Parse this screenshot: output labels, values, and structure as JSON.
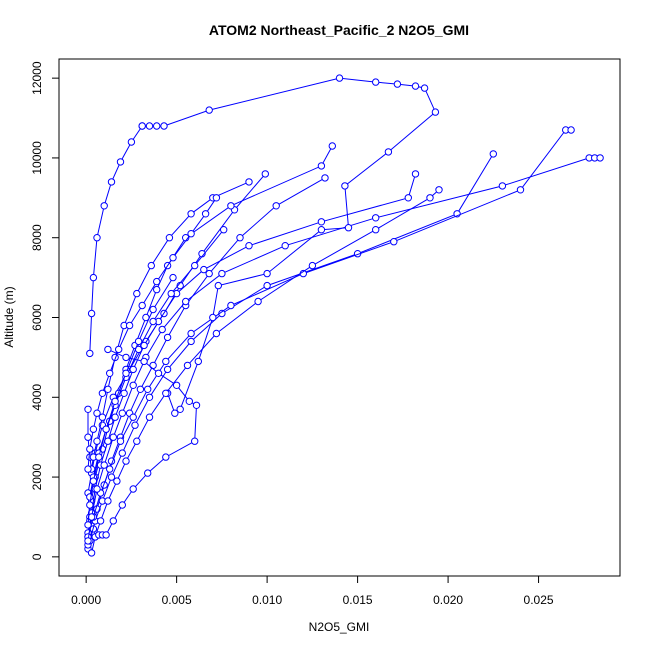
{
  "chart_data": {
    "type": "line",
    "title": "ATOM2 Northeast_Pacific_2 N2O5_GMI",
    "xlabel": "N2O5_GMI",
    "ylabel": "Altitude (m)",
    "xlim": [
      -0.0015,
      0.0295
    ],
    "ylim": [
      -480,
      12480
    ],
    "xticks": [
      0.0,
      0.005,
      0.01,
      0.015,
      0.02,
      0.025
    ],
    "xtick_labels": [
      "0.000",
      "0.005",
      "0.010",
      "0.015",
      "0.020",
      "0.025"
    ],
    "yticks": [
      0,
      2000,
      4000,
      6000,
      8000,
      10000,
      12000
    ],
    "ytick_labels": [
      "0",
      "2000",
      "4000",
      "6000",
      "8000",
      "10000",
      "12000"
    ],
    "grid": false,
    "legend": "none",
    "marker": "open-circle",
    "color": "#0000ff",
    "series": [
      {
        "x": [
          0.0001,
          0.0003,
          0.0002,
          0.0001,
          0.0003,
          0.0005,
          0.0009,
          0.0015,
          0.0024,
          0.0033,
          0.0043,
          0.0052,
          0.0064,
          0.0082,
          0.0099
        ],
        "y": [
          200,
          600,
          1000,
          1600,
          2100,
          2600,
          3300,
          4000,
          4700,
          5400,
          6100,
          6800,
          7600,
          8700,
          9600
        ]
      },
      {
        "x": [
          0.0001,
          0.0004,
          0.0006,
          0.001,
          0.0014,
          0.0019,
          0.0024,
          0.003,
          0.0037,
          0.0045,
          0.0055,
          0.0068,
          0.0085,
          0.0105,
          0.0132
        ],
        "y": [
          300,
          700,
          1200,
          1800,
          2400,
          3000,
          3600,
          4200,
          4800,
          5500,
          6300,
          7100,
          8000,
          8800,
          9500
        ]
      },
      {
        "x": [
          0.0001,
          0.0002,
          0.0003,
          0.0005,
          0.0009,
          0.0013,
          0.0018,
          0.0022,
          0.0027,
          0.0033,
          0.0039,
          0.0045,
          0.0055,
          0.008,
          0.013,
          0.0136
        ],
        "y": [
          500,
          900,
          1400,
          2000,
          2700,
          3400,
          4100,
          4700,
          5300,
          6000,
          6700,
          7300,
          8000,
          8800,
          9800,
          10300
        ]
      },
      {
        "x": [
          0.0001,
          0.0003,
          0.0005,
          0.0008,
          0.0012,
          0.0016,
          0.0021,
          0.0026,
          0.0032,
          0.004,
          0.005,
          0.0065,
          0.009,
          0.013,
          0.0178,
          0.0182
        ],
        "y": [
          600,
          1100,
          1700,
          2300,
          2900,
          3500,
          4100,
          4700,
          5300,
          5900,
          6600,
          7200,
          7800,
          8400,
          9000,
          9600
        ]
      },
      {
        "x": [
          0.0002,
          0.0005,
          0.0009,
          0.0014,
          0.002,
          0.0027,
          0.0035,
          0.0045,
          0.0058,
          0.0075,
          0.01,
          0.015,
          0.0205,
          0.0225
        ],
        "y": [
          400,
          900,
          1400,
          2000,
          2600,
          3300,
          4000,
          4700,
          5400,
          6100,
          6800,
          7600,
          8600,
          10100
        ]
      },
      {
        "x": [
          0.0001,
          0.0004,
          0.0008,
          0.0013,
          0.0019,
          0.0026,
          0.0034,
          0.0044,
          0.0058,
          0.008,
          0.012,
          0.017,
          0.024,
          0.0265,
          0.0268
        ],
        "y": [
          500,
          1000,
          1600,
          2200,
          2900,
          3500,
          4200,
          4900,
          5600,
          6300,
          7100,
          7900,
          9200,
          10700,
          10700
        ]
      },
      {
        "x": [
          0.0001,
          0.0003,
          0.0006,
          0.001,
          0.0015,
          0.002,
          0.0026,
          0.0033,
          0.0042,
          0.0055,
          0.0075,
          0.011,
          0.016,
          0.023,
          0.0278,
          0.0281,
          0.0284
        ],
        "y": [
          400,
          1000,
          1700,
          2300,
          3000,
          3600,
          4300,
          5000,
          5700,
          6400,
          7100,
          7800,
          8500,
          9300,
          10000,
          10000,
          10000
        ]
      },
      {
        "x": [
          0.0002,
          0.0003,
          0.0004,
          0.0006,
          0.001,
          0.0014,
          0.0019,
          0.0025,
          0.0031
        ],
        "y": [
          5100,
          6100,
          7000,
          8000,
          8800,
          9400,
          9900,
          10400,
          10800
        ]
      },
      {
        "x": [
          0.0031,
          0.0035,
          0.0039,
          0.0043,
          0.0068,
          0.014,
          0.016,
          0.0172,
          0.0182,
          0.0187,
          0.0193,
          0.0167,
          0.0143,
          0.0145,
          0.013,
          0.01,
          0.0073,
          0.007,
          0.0062,
          0.0052,
          0.0049,
          0.0045
        ],
        "y": [
          10800,
          10800,
          10800,
          10800,
          11200,
          12000,
          11900,
          11850,
          11800,
          11750,
          11150,
          10150,
          9300,
          8250,
          8200,
          7100,
          6800,
          6000,
          4900,
          3700,
          3600,
          4100
        ]
      },
      {
        "x": [
          0.0001,
          0.0001,
          0.0002,
          0.0003,
          0.0004,
          0.0006,
          0.0009,
          0.0012,
          0.0016,
          0.0021,
          0.0028,
          0.0036,
          0.0046,
          0.0058,
          0.007,
          0.009
        ],
        "y": [
          3700,
          3000,
          2500,
          2200,
          2500,
          2900,
          3500,
          4200,
          5000,
          5800,
          6600,
          7300,
          8000,
          8600,
          9000,
          9400
        ]
      },
      {
        "x": [
          0.0003,
          0.0005,
          0.0008,
          0.0012,
          0.0017,
          0.0022,
          0.0028,
          0.0035,
          0.0044,
          0.0056,
          0.0072,
          0.0095,
          0.0125,
          0.016,
          0.019,
          0.0195
        ],
        "y": [
          100,
          500,
          900,
          1400,
          1900,
          2400,
          2900,
          3500,
          4100,
          4800,
          5600,
          6400,
          7300,
          8200,
          9000,
          9200
        ]
      },
      {
        "x": [
          0.0005,
          0.0007,
          0.0009,
          0.0011,
          0.0015,
          0.002,
          0.0026,
          0.0034,
          0.0044,
          0.006,
          0.0061,
          0.0057,
          0.005,
          0.004,
          0.0032,
          0.0022,
          0.0012
        ],
        "y": [
          500,
          550,
          550,
          550,
          900,
          1300,
          1700,
          2100,
          2500,
          2900,
          3800,
          3900,
          4300,
          4600,
          4900,
          5000,
          5200
        ]
      },
      {
        "x": [
          0.0001,
          0.0002,
          0.0004,
          0.0006,
          0.0009,
          0.0013,
          0.0018,
          0.0024,
          0.0031,
          0.0039,
          0.0048,
          0.0058,
          0.0066,
          0.0072
        ],
        "y": [
          2200,
          2700,
          3200,
          3600,
          4100,
          4600,
          5200,
          5800,
          6300,
          6900,
          7500,
          8100,
          8600,
          9000
        ]
      },
      {
        "x": [
          0.0002,
          0.0004,
          0.0007,
          0.0011,
          0.0016,
          0.0022,
          0.0029,
          0.0037,
          0.0047,
          0.006,
          0.0076
        ],
        "y": [
          1500,
          2000,
          2600,
          3200,
          3800,
          4500,
          5200,
          5900,
          6600,
          7300,
          8200
        ]
      },
      {
        "x": [
          0.0001,
          0.0002,
          0.0004,
          0.0007,
          0.0011,
          0.0016,
          0.0022,
          0.0029,
          0.0037,
          0.0048
        ],
        "y": [
          800,
          1300,
          1900,
          2500,
          3200,
          3900,
          4600,
          5400,
          6200,
          7000
        ]
      }
    ]
  }
}
